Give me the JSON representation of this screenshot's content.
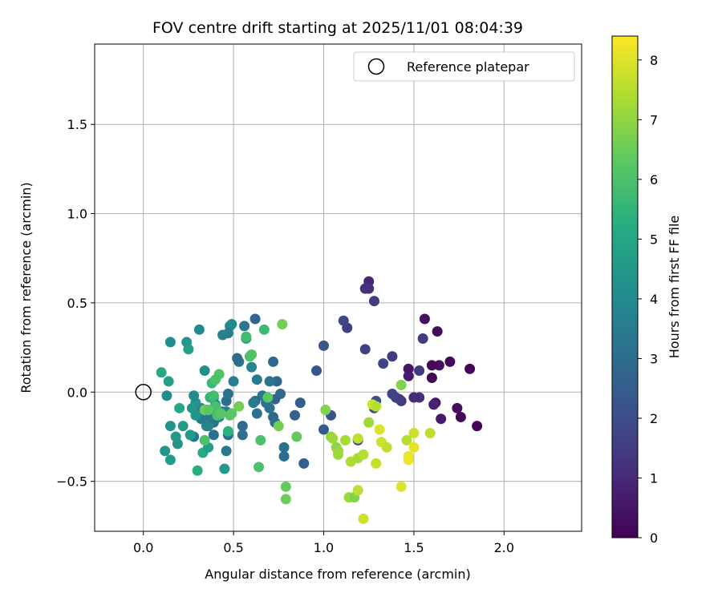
{
  "chart_data": {
    "type": "scatter",
    "title": "FOV centre drift starting at 2025/11/01 08:04:39",
    "xlabel": "Angular distance from reference (arcmin)",
    "ylabel": "Rotation from reference (arcmin)",
    "xlim": [
      -0.27,
      2.43
    ],
    "ylim": [
      -0.78,
      1.95
    ],
    "xticks": [
      0.0,
      0.5,
      1.0,
      1.5,
      2.0
    ],
    "xtick_labels": [
      "0.0",
      "0.5",
      "1.0",
      "1.5",
      "2.0"
    ],
    "yticks": [
      -0.5,
      0.0,
      0.5,
      1.0,
      1.5
    ],
    "ytick_labels": [
      "−0.5",
      "0.0",
      "0.5",
      "1.0",
      "1.5"
    ],
    "grid": true,
    "colormap": "viridis",
    "colorbar": {
      "label": "Hours from first FF file",
      "range": [
        0,
        8.4
      ],
      "ticks": [
        0,
        1,
        2,
        3,
        4,
        5,
        6,
        7,
        8
      ],
      "tick_labels": [
        "0",
        "1",
        "2",
        "3",
        "4",
        "5",
        "6",
        "7",
        "8"
      ]
    },
    "legend": {
      "label": "Reference platepar",
      "position": "top-right"
    },
    "reference_point": {
      "x": 0.0,
      "y": 0.0
    },
    "points": [
      {
        "x": 1.85,
        "y": -0.19,
        "h": 0.05
      },
      {
        "x": 1.81,
        "y": 0.13,
        "h": 0.1
      },
      {
        "x": 1.76,
        "y": -0.14,
        "h": 0.2
      },
      {
        "x": 1.74,
        "y": -0.09,
        "h": 0.3
      },
      {
        "x": 1.7,
        "y": 0.17,
        "h": 0.15
      },
      {
        "x": 1.64,
        "y": 0.15,
        "h": 0.35
      },
      {
        "x": 1.63,
        "y": 0.34,
        "h": 0.25
      },
      {
        "x": 1.65,
        "y": -0.15,
        "h": 0.6
      },
      {
        "x": 1.62,
        "y": -0.06,
        "h": 0.5
      },
      {
        "x": 1.6,
        "y": 0.08,
        "h": 0.1
      },
      {
        "x": 1.6,
        "y": 0.15,
        "h": 0.2
      },
      {
        "x": 1.56,
        "y": 0.41,
        "h": 0.4
      },
      {
        "x": 1.61,
        "y": -0.07,
        "h": 0.8
      },
      {
        "x": 1.55,
        "y": 0.3,
        "h": 1.5
      },
      {
        "x": 1.53,
        "y": 0.12,
        "h": 1.4
      },
      {
        "x": 1.53,
        "y": -0.03,
        "h": 1.2
      },
      {
        "x": 1.5,
        "y": -0.03,
        "h": 1.0
      },
      {
        "x": 1.47,
        "y": 0.13,
        "h": 0.5
      },
      {
        "x": 1.47,
        "y": 0.09,
        "h": 0.6
      },
      {
        "x": 1.43,
        "y": -0.05,
        "h": 1.3
      },
      {
        "x": 1.42,
        "y": -0.04,
        "h": 1.5
      },
      {
        "x": 1.4,
        "y": -0.03,
        "h": 1.6
      },
      {
        "x": 1.38,
        "y": -0.01,
        "h": 1.7
      },
      {
        "x": 1.38,
        "y": 0.2,
        "h": 1.5
      },
      {
        "x": 1.33,
        "y": 0.16,
        "h": 1.8
      },
      {
        "x": 1.28,
        "y": -0.09,
        "h": 2.2
      },
      {
        "x": 1.29,
        "y": -0.05,
        "h": 2.1
      },
      {
        "x": 1.25,
        "y": 0.62,
        "h": 0.9
      },
      {
        "x": 1.25,
        "y": 0.58,
        "h": 1.1
      },
      {
        "x": 1.23,
        "y": 0.58,
        "h": 1.2
      },
      {
        "x": 1.28,
        "y": 0.51,
        "h": 1.5
      },
      {
        "x": 1.23,
        "y": 0.24,
        "h": 1.6
      },
      {
        "x": 1.19,
        "y": -0.27,
        "h": 1.9
      },
      {
        "x": 1.13,
        "y": 0.36,
        "h": 1.6
      },
      {
        "x": 1.11,
        "y": 0.4,
        "h": 1.8
      },
      {
        "x": 1.04,
        "y": -0.13,
        "h": 2.2
      },
      {
        "x": 1.0,
        "y": 0.26,
        "h": 2.3
      },
      {
        "x": 1.0,
        "y": -0.21,
        "h": 2.4
      },
      {
        "x": 0.96,
        "y": 0.12,
        "h": 2.3
      },
      {
        "x": 0.89,
        "y": -0.4,
        "h": 2.6
      },
      {
        "x": 0.87,
        "y": -0.06,
        "h": 2.5
      },
      {
        "x": 0.84,
        "y": -0.13,
        "h": 2.6
      },
      {
        "x": 0.78,
        "y": -0.36,
        "h": 3.0
      },
      {
        "x": 0.78,
        "y": -0.31,
        "h": 3.1
      },
      {
        "x": 0.76,
        "y": -0.01,
        "h": 2.9
      },
      {
        "x": 0.74,
        "y": 0.06,
        "h": 2.8
      },
      {
        "x": 0.73,
        "y": -0.04,
        "h": 2.7
      },
      {
        "x": 0.72,
        "y": 0.17,
        "h": 2.9
      },
      {
        "x": 0.72,
        "y": -0.14,
        "h": 2.8
      },
      {
        "x": 0.73,
        "y": -0.17,
        "h": 3.0
      },
      {
        "x": 0.7,
        "y": 0.06,
        "h": 3.3
      },
      {
        "x": 0.7,
        "y": -0.09,
        "h": 3.2
      },
      {
        "x": 0.68,
        "y": -0.06,
        "h": 3.2
      },
      {
        "x": 0.66,
        "y": -0.02,
        "h": 3.4
      },
      {
        "x": 0.62,
        "y": 0.41,
        "h": 2.7
      },
      {
        "x": 0.62,
        "y": -0.05,
        "h": 3.0
      },
      {
        "x": 0.63,
        "y": -0.12,
        "h": 3.1
      },
      {
        "x": 0.63,
        "y": 0.07,
        "h": 3.5
      },
      {
        "x": 0.61,
        "y": -0.06,
        "h": 3.5
      },
      {
        "x": 0.6,
        "y": 0.14,
        "h": 3.8
      },
      {
        "x": 0.56,
        "y": 0.37,
        "h": 3.4
      },
      {
        "x": 0.55,
        "y": -0.19,
        "h": 3.0
      },
      {
        "x": 0.55,
        "y": -0.24,
        "h": 3.1
      },
      {
        "x": 0.53,
        "y": 0.17,
        "h": 3.3
      },
      {
        "x": 0.52,
        "y": 0.19,
        "h": 3.0
      },
      {
        "x": 0.5,
        "y": 0.06,
        "h": 3.6
      },
      {
        "x": 0.49,
        "y": 0.38,
        "h": 3.8
      },
      {
        "x": 0.48,
        "y": 0.37,
        "h": 4.0
      },
      {
        "x": 0.47,
        "y": 0.33,
        "h": 3.6
      },
      {
        "x": 0.44,
        "y": 0.32,
        "h": 3.7
      },
      {
        "x": 0.46,
        "y": -0.05,
        "h": 3.0
      },
      {
        "x": 0.47,
        "y": -0.01,
        "h": 3.2
      },
      {
        "x": 0.46,
        "y": -0.11,
        "h": 3.3
      },
      {
        "x": 0.47,
        "y": -0.24,
        "h": 3.1
      },
      {
        "x": 0.46,
        "y": -0.33,
        "h": 3.4
      },
      {
        "x": 0.45,
        "y": -0.43,
        "h": 4.6
      },
      {
        "x": 0.44,
        "y": -0.11,
        "h": 3.5
      },
      {
        "x": 0.42,
        "y": -0.14,
        "h": 4.0
      },
      {
        "x": 0.4,
        "y": -0.07,
        "h": 3.6
      },
      {
        "x": 0.39,
        "y": -0.03,
        "h": 3.7
      },
      {
        "x": 0.38,
        "y": -0.11,
        "h": 3.9
      },
      {
        "x": 0.39,
        "y": -0.17,
        "h": 3.3
      },
      {
        "x": 0.39,
        "y": -0.24,
        "h": 3.1
      },
      {
        "x": 0.37,
        "y": -0.14,
        "h": 3.4
      },
      {
        "x": 0.36,
        "y": -0.19,
        "h": 3.6
      },
      {
        "x": 0.35,
        "y": -0.19,
        "h": 3.8
      },
      {
        "x": 0.35,
        "y": -0.1,
        "h": 3.3
      },
      {
        "x": 0.34,
        "y": 0.12,
        "h": 4.2
      },
      {
        "x": 0.32,
        "y": -0.15,
        "h": 3.5
      },
      {
        "x": 0.32,
        "y": -0.09,
        "h": 3.8
      },
      {
        "x": 0.31,
        "y": 0.35,
        "h": 4.0
      },
      {
        "x": 0.3,
        "y": -0.11,
        "h": 3.6
      },
      {
        "x": 0.29,
        "y": -0.06,
        "h": 4.3
      },
      {
        "x": 0.29,
        "y": -0.13,
        "h": 4.4
      },
      {
        "x": 0.28,
        "y": -0.25,
        "h": 3.3
      },
      {
        "x": 0.28,
        "y": -0.02,
        "h": 4.0
      },
      {
        "x": 0.27,
        "y": -0.09,
        "h": 4.5
      },
      {
        "x": 0.26,
        "y": -0.24,
        "h": 4.6
      },
      {
        "x": 0.25,
        "y": 0.24,
        "h": 4.8
      },
      {
        "x": 0.24,
        "y": 0.28,
        "h": 4.5
      },
      {
        "x": 0.22,
        "y": -0.19,
        "h": 4.6
      },
      {
        "x": 0.2,
        "y": -0.09,
        "h": 5.0
      },
      {
        "x": 0.19,
        "y": -0.29,
        "h": 4.3
      },
      {
        "x": 0.18,
        "y": -0.25,
        "h": 4.6
      },
      {
        "x": 0.15,
        "y": -0.38,
        "h": 4.6
      },
      {
        "x": 0.15,
        "y": -0.19,
        "h": 4.4
      },
      {
        "x": 0.15,
        "y": 0.28,
        "h": 4.1
      },
      {
        "x": 0.14,
        "y": 0.06,
        "h": 4.7
      },
      {
        "x": 0.13,
        "y": -0.02,
        "h": 4.0
      },
      {
        "x": 0.12,
        "y": -0.33,
        "h": 4.4
      },
      {
        "x": 0.1,
        "y": 0.11,
        "h": 5.1
      },
      {
        "x": 0.3,
        "y": -0.44,
        "h": 5.3
      },
      {
        "x": 0.33,
        "y": -0.34,
        "h": 5.1
      },
      {
        "x": 0.36,
        "y": -0.31,
        "h": 4.7
      },
      {
        "x": 0.37,
        "y": -0.03,
        "h": 5.5
      },
      {
        "x": 0.38,
        "y": 0.05,
        "h": 5.6
      },
      {
        "x": 0.39,
        "y": -0.02,
        "h": 5.8
      },
      {
        "x": 0.4,
        "y": -0.08,
        "h": 5.9
      },
      {
        "x": 0.42,
        "y": 0.1,
        "h": 6.1
      },
      {
        "x": 0.4,
        "y": 0.07,
        "h": 6.0
      },
      {
        "x": 0.41,
        "y": -0.13,
        "h": 6.0
      },
      {
        "x": 0.43,
        "y": -0.12,
        "h": 6.2
      },
      {
        "x": 0.47,
        "y": -0.22,
        "h": 5.4
      },
      {
        "x": 0.48,
        "y": -0.13,
        "h": 6.2
      },
      {
        "x": 0.49,
        "y": -0.12,
        "h": 6.3
      },
      {
        "x": 0.34,
        "y": -0.27,
        "h": 6.0
      },
      {
        "x": 0.34,
        "y": -0.1,
        "h": 6.5
      },
      {
        "x": 0.36,
        "y": -0.1,
        "h": 6.3
      },
      {
        "x": 0.57,
        "y": 0.3,
        "h": 5.0
      },
      {
        "x": 0.57,
        "y": 0.31,
        "h": 5.8
      },
      {
        "x": 0.59,
        "y": 0.2,
        "h": 5.9
      },
      {
        "x": 0.6,
        "y": 0.21,
        "h": 6.1
      },
      {
        "x": 0.53,
        "y": -0.08,
        "h": 6.6
      },
      {
        "x": 0.65,
        "y": -0.27,
        "h": 6.0
      },
      {
        "x": 0.64,
        "y": -0.42,
        "h": 6.0
      },
      {
        "x": 0.67,
        "y": 0.35,
        "h": 5.7
      },
      {
        "x": 0.69,
        "y": -0.03,
        "h": 6.3
      },
      {
        "x": 0.75,
        "y": -0.19,
        "h": 6.6
      },
      {
        "x": 0.77,
        "y": 0.38,
        "h": 6.6
      },
      {
        "x": 0.79,
        "y": -0.53,
        "h": 6.4
      },
      {
        "x": 0.79,
        "y": -0.6,
        "h": 6.5
      },
      {
        "x": 0.85,
        "y": -0.25,
        "h": 6.4
      },
      {
        "x": 1.01,
        "y": -0.1,
        "h": 6.8
      },
      {
        "x": 1.04,
        "y": -0.25,
        "h": 7.0
      },
      {
        "x": 1.05,
        "y": -0.26,
        "h": 7.2
      },
      {
        "x": 1.07,
        "y": -0.31,
        "h": 7.0
      },
      {
        "x": 1.08,
        "y": -0.33,
        "h": 7.1
      },
      {
        "x": 1.08,
        "y": -0.35,
        "h": 7.2
      },
      {
        "x": 1.12,
        "y": -0.27,
        "h": 7.3
      },
      {
        "x": 1.14,
        "y": -0.59,
        "h": 7.2
      },
      {
        "x": 1.15,
        "y": -0.39,
        "h": 7.4
      },
      {
        "x": 1.17,
        "y": -0.59,
        "h": 6.8
      },
      {
        "x": 1.19,
        "y": -0.37,
        "h": 7.3
      },
      {
        "x": 1.19,
        "y": -0.55,
        "h": 7.6
      },
      {
        "x": 1.19,
        "y": -0.26,
        "h": 7.6
      },
      {
        "x": 1.22,
        "y": -0.35,
        "h": 7.5
      },
      {
        "x": 1.25,
        "y": -0.17,
        "h": 7.2
      },
      {
        "x": 1.22,
        "y": -0.71,
        "h": 7.8
      },
      {
        "x": 1.27,
        "y": -0.07,
        "h": 7.8
      },
      {
        "x": 1.29,
        "y": -0.4,
        "h": 7.7
      },
      {
        "x": 1.29,
        "y": -0.08,
        "h": 7.5
      },
      {
        "x": 1.31,
        "y": -0.21,
        "h": 8.0
      },
      {
        "x": 1.32,
        "y": -0.28,
        "h": 7.8
      },
      {
        "x": 1.35,
        "y": -0.31,
        "h": 7.6
      },
      {
        "x": 1.43,
        "y": 0.04,
        "h": 6.8
      },
      {
        "x": 1.43,
        "y": -0.53,
        "h": 8.0
      },
      {
        "x": 1.46,
        "y": -0.27,
        "h": 7.5
      },
      {
        "x": 1.47,
        "y": -0.36,
        "h": 8.1
      },
      {
        "x": 1.47,
        "y": -0.38,
        "h": 8.2
      },
      {
        "x": 1.5,
        "y": -0.31,
        "h": 8.1
      },
      {
        "x": 1.5,
        "y": -0.23,
        "h": 7.8
      },
      {
        "x": 1.59,
        "y": -0.23,
        "h": 7.6
      }
    ]
  }
}
